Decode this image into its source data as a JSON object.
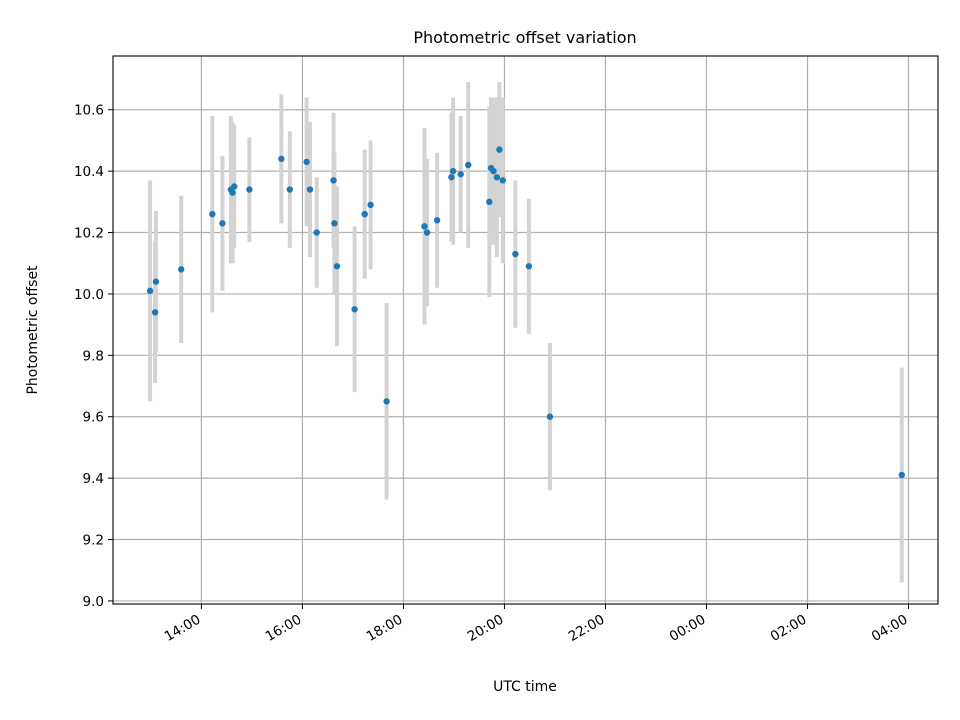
{
  "chart_data": {
    "type": "scatter",
    "title": "Photometric offset variation",
    "xlabel": "UTC time",
    "ylabel": "Photometric offset",
    "grid": true,
    "xlim": [
      "12:15",
      "04:35+1"
    ],
    "ylim": [
      8.99,
      10.775
    ],
    "x_ticks": [
      "14:00",
      "16:00",
      "18:00",
      "20:00",
      "22:00",
      "00:00",
      "02:00",
      "04:00"
    ],
    "y_ticks": [
      "9.0",
      "9.2",
      "9.4",
      "9.6",
      "9.8",
      "10.0",
      "10.2",
      "10.4",
      "10.6"
    ],
    "colors": {
      "points": "#1f77b4",
      "error_bars": "#d3d3d3",
      "grid": "#b0b0b0"
    },
    "series": [
      {
        "points": [
          {
            "x": "12:59",
            "y": 10.01,
            "err": 0.36
          },
          {
            "x": "13:05",
            "y": 9.94,
            "err": 0.23
          },
          {
            "x": "13:06",
            "y": 10.04,
            "err": 0.23
          },
          {
            "x": "13:36",
            "y": 10.08,
            "err": 0.24
          },
          {
            "x": "14:13",
            "y": 10.26,
            "err": 0.32
          },
          {
            "x": "14:25",
            "y": 10.23,
            "err": 0.22
          },
          {
            "x": "14:35",
            "y": 10.34,
            "err": 0.24
          },
          {
            "x": "14:37",
            "y": 10.33,
            "err": 0.23
          },
          {
            "x": "14:39",
            "y": 10.35,
            "err": 0.2
          },
          {
            "x": "14:57",
            "y": 10.34,
            "err": 0.17
          },
          {
            "x": "15:35",
            "y": 10.44,
            "err": 0.21
          },
          {
            "x": "15:45",
            "y": 10.34,
            "err": 0.19
          },
          {
            "x": "16:05",
            "y": 10.43,
            "err": 0.21
          },
          {
            "x": "16:09",
            "y": 10.34,
            "err": 0.22
          },
          {
            "x": "16:17",
            "y": 10.2,
            "err": 0.18
          },
          {
            "x": "16:37",
            "y": 10.37,
            "err": 0.22
          },
          {
            "x": "16:38",
            "y": 10.23,
            "err": 0.23
          },
          {
            "x": "16:41",
            "y": 10.09,
            "err": 0.26
          },
          {
            "x": "17:02",
            "y": 9.95,
            "err": 0.27
          },
          {
            "x": "17:14",
            "y": 10.26,
            "err": 0.21
          },
          {
            "x": "17:21",
            "y": 10.29,
            "err": 0.21
          },
          {
            "x": "17:40",
            "y": 9.65,
            "err": 0.32
          },
          {
            "x": "18:25",
            "y": 10.22,
            "err": 0.32
          },
          {
            "x": "18:28",
            "y": 10.2,
            "err": 0.24
          },
          {
            "x": "18:40",
            "y": 10.24,
            "err": 0.22
          },
          {
            "x": "18:57",
            "y": 10.38,
            "err": 0.21
          },
          {
            "x": "18:59",
            "y": 10.4,
            "err": 0.24
          },
          {
            "x": "19:08",
            "y": 10.39,
            "err": 0.19
          },
          {
            "x": "19:17",
            "y": 10.42,
            "err": 0.27
          },
          {
            "x": "19:42",
            "y": 10.3,
            "err": 0.31
          },
          {
            "x": "19:44",
            "y": 10.41,
            "err": 0.23
          },
          {
            "x": "19:47",
            "y": 10.4,
            "err": 0.24
          },
          {
            "x": "19:51",
            "y": 10.38,
            "err": 0.26
          },
          {
            "x": "19:54",
            "y": 10.47,
            "err": 0.22
          },
          {
            "x": "19:58",
            "y": 10.37,
            "err": 0.27
          },
          {
            "x": "20:13",
            "y": 10.13,
            "err": 0.24
          },
          {
            "x": "20:29",
            "y": 10.09,
            "err": 0.22
          },
          {
            "x": "20:54",
            "y": 9.6,
            "err": 0.24
          },
          {
            "x": "03:52+1",
            "y": 9.41,
            "err": 0.35
          }
        ]
      }
    ]
  }
}
